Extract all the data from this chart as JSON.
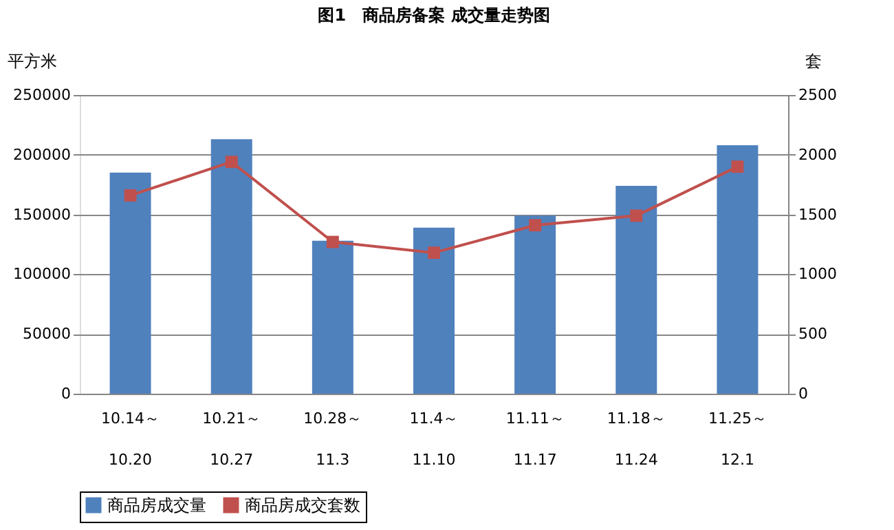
{
  "chart_data": {
    "type": "bar",
    "title": "图1　商品房备案 成交量走势图",
    "categories": [
      "10.14～\n10.20",
      "10.21～\n10.27",
      "10.28～\n11.3",
      "11.4～\n11.10",
      "11.11～\n11.17",
      "11.18～\n11.24",
      "11.25～\n12.1"
    ],
    "series": [
      {
        "name": "商品房成交量",
        "color": "#4f81bd",
        "values": [
          185000,
          213000,
          128000,
          139000,
          149000,
          174000,
          208000
        ]
      },
      {
        "name": "商品房成交套数",
        "type": "line",
        "axis": "y2",
        "color": "#c0504d",
        "marker": "square",
        "values": [
          1660,
          1940,
          1270,
          1180,
          1410,
          1490,
          1900
        ]
      }
    ],
    "ylabel": "平方米",
    "y2label": "套",
    "ylim": [
      0,
      250000
    ],
    "yticks": [
      0,
      50000,
      100000,
      150000,
      200000,
      250000
    ],
    "y2lim": [
      0,
      2500
    ],
    "y2ticks": [
      0,
      500,
      1000,
      1500,
      2000,
      2500
    ],
    "grid": "y",
    "legend": "bottom"
  }
}
